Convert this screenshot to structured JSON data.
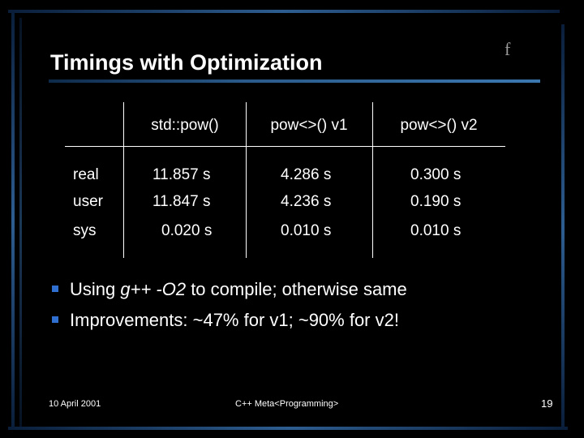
{
  "slide": {
    "title": "Timings with Optimization",
    "corner_mark": "f",
    "table": {
      "headers": [
        "std::pow()",
        "pow<>() v1",
        "pow<>() v2"
      ],
      "rows": [
        {
          "label": "real",
          "values": [
            "11.857 s",
            "4.286 s",
            "0.300 s"
          ]
        },
        {
          "label": "user",
          "values": [
            "11.847 s",
            "4.236 s",
            "0.190 s"
          ]
        },
        {
          "label": "sys",
          "values": [
            "0.020 s",
            "0.010 s",
            "0.010 s"
          ]
        }
      ]
    },
    "bullets": [
      {
        "lead": "Using ",
        "em": "g++ -O2",
        "rest": " to compile; otherwise same"
      },
      {
        "lead": "Improvements:  ~47% for v1; ~90% for v2!",
        "em": "",
        "rest": ""
      }
    ],
    "footer": {
      "date": "10 April 2001",
      "center": "C++ Meta<Programming>",
      "page": "19"
    }
  },
  "colors": {
    "background": "#000000",
    "text": "#ffffff",
    "bullet": "#2f6fd0",
    "title_rule": "#3b78b0",
    "frame": "#3a6ea5"
  }
}
